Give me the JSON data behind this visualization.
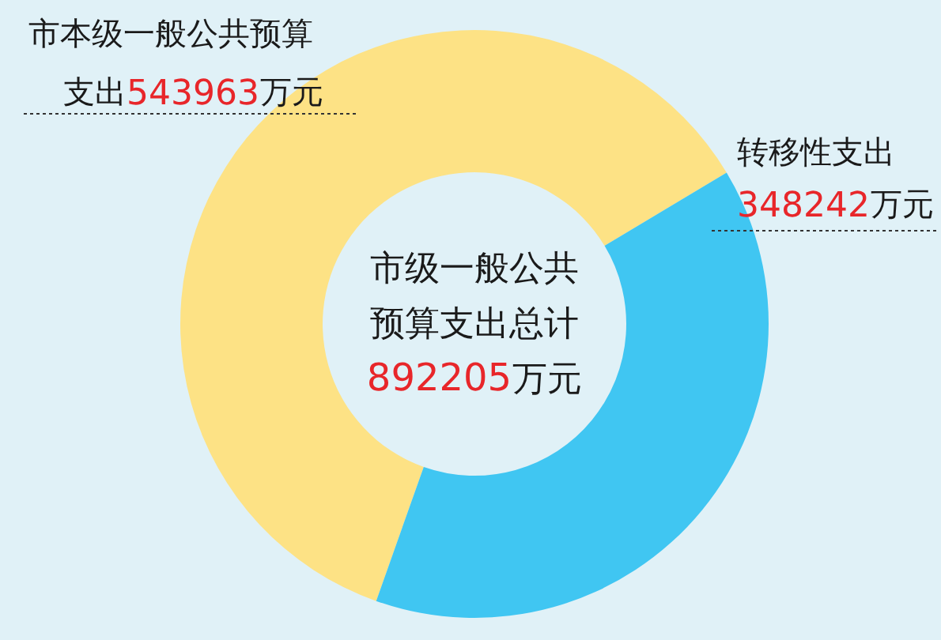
{
  "chart_data": {
    "type": "donut",
    "categories": [
      "市本级一般公共预算支出",
      "转移性支出"
    ],
    "values": [
      543963,
      348242
    ],
    "colors": [
      "#fde285",
      "#40c6f2"
    ],
    "value_labels": [
      "543963万元",
      "348242万元"
    ],
    "annotations": [
      "市级一般公共预算支出总计892205万元"
    ]
  }
}
